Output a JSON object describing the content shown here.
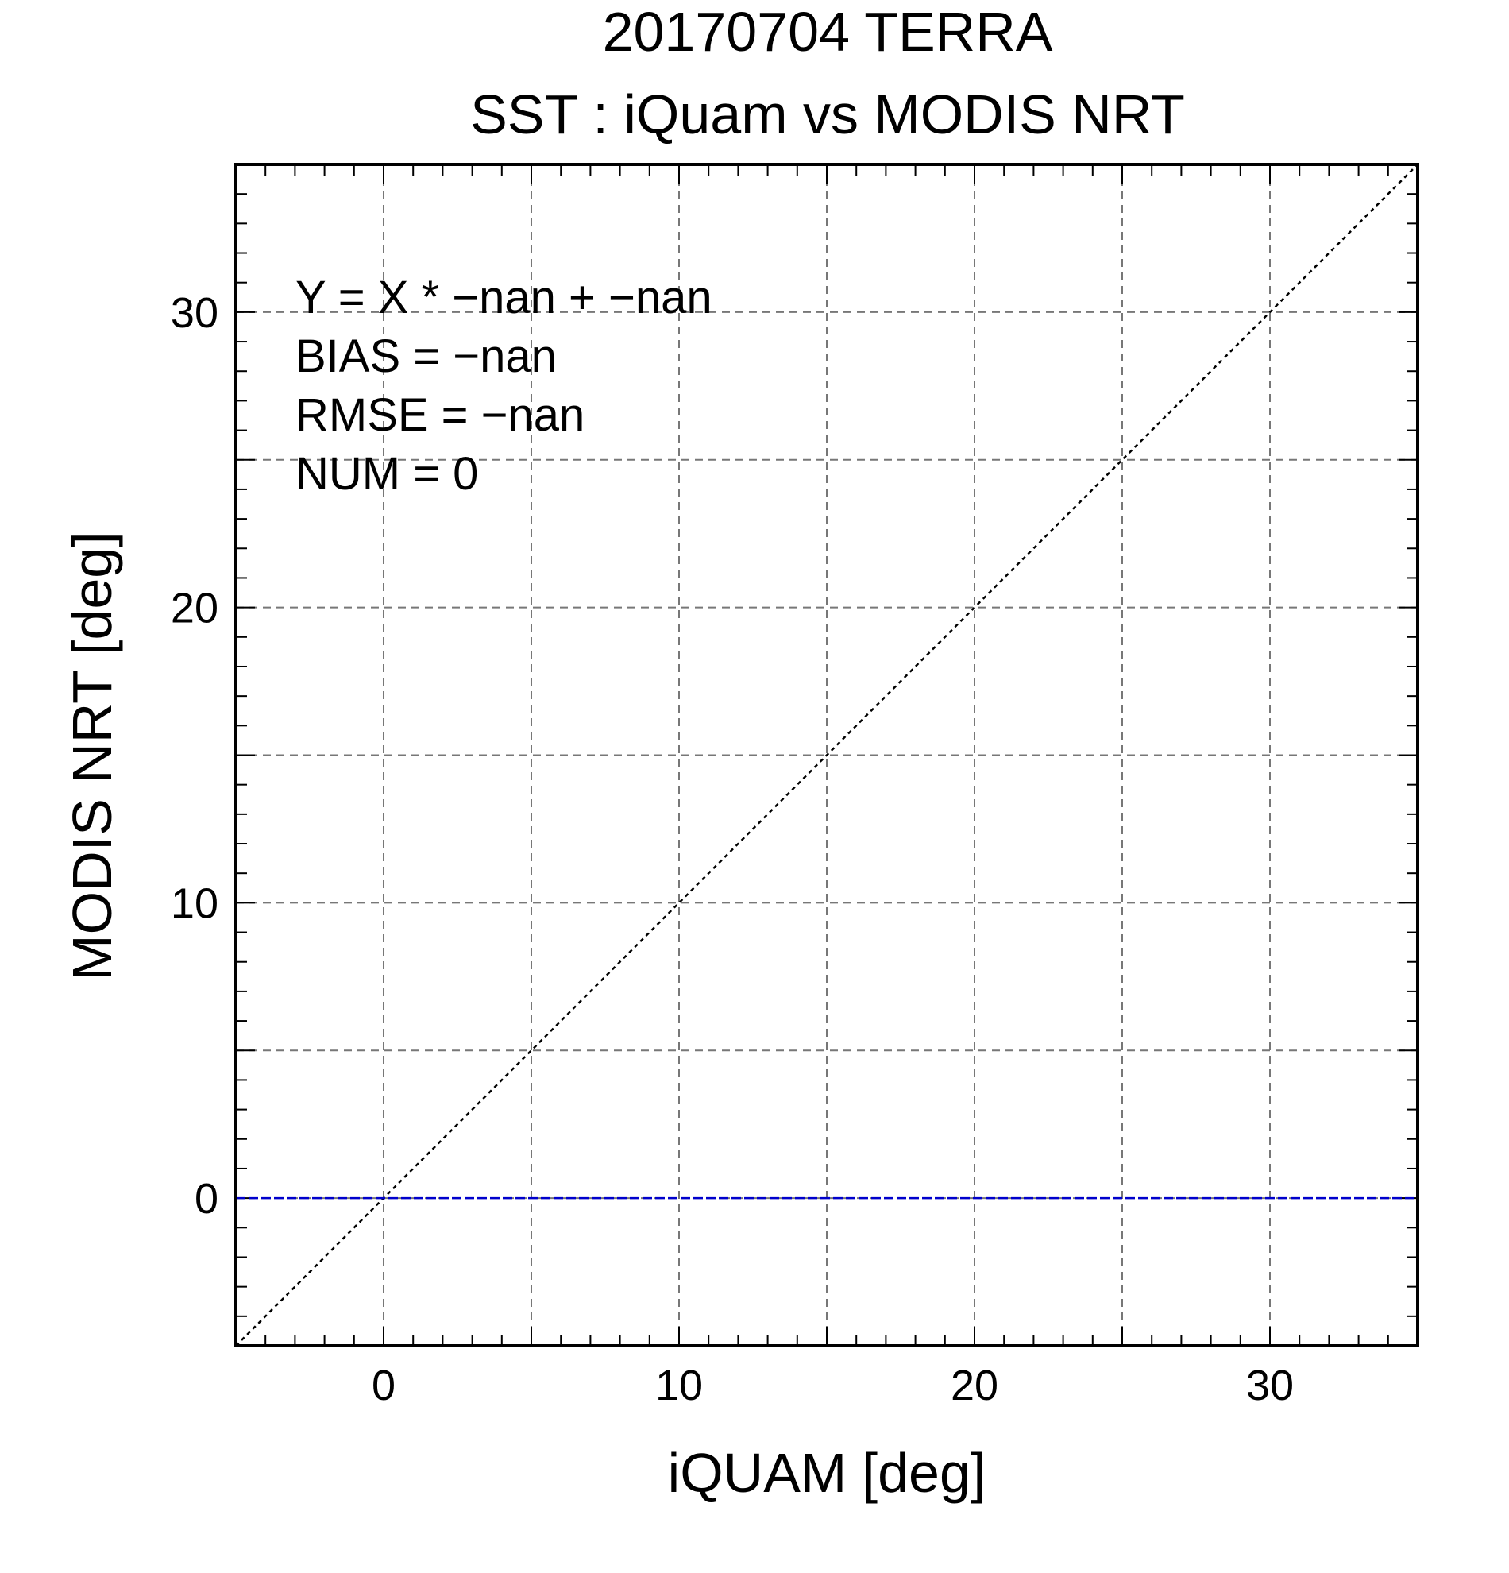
{
  "chart_data": {
    "type": "scatter",
    "title": "20170704 TERRA",
    "subtitle": "SST : iQuam vs MODIS NRT",
    "xlabel": "iQUAM [deg]",
    "ylabel": "MODIS NRT [deg]",
    "xlim": [
      -5,
      35
    ],
    "ylim": [
      -5,
      35
    ],
    "xticks": [
      0,
      10,
      20,
      30
    ],
    "yticks": [
      0,
      10,
      20,
      30
    ],
    "major_grid_step": 5,
    "minor_tick_step": 1,
    "grid": true,
    "grid_style": "dashed",
    "series": [],
    "reference_lines": [
      {
        "kind": "one-to-one",
        "x": [
          -5,
          35
        ],
        "y": [
          -5,
          35
        ],
        "color": "#000000",
        "style": "dotted"
      },
      {
        "kind": "regression",
        "x": [
          -5,
          35
        ],
        "y": [
          0,
          0
        ],
        "color": "#0000cc",
        "style": "dashed"
      }
    ],
    "annotations": [
      "Y = X * −nan + −nan",
      "BIAS = −nan",
      "RMSE = −nan",
      "NUM = 0"
    ]
  }
}
